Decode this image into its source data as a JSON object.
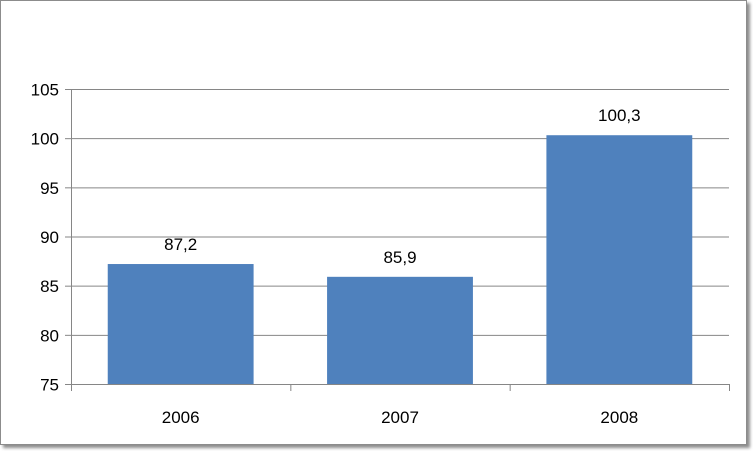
{
  "chart_data": {
    "type": "bar",
    "categories": [
      "2006",
      "2007",
      "2008"
    ],
    "values": [
      87.2,
      85.9,
      100.3
    ],
    "data_labels": [
      "87,2",
      "85,9",
      "100,3"
    ],
    "ylim": [
      75,
      105
    ],
    "yticks": [
      75,
      80,
      85,
      90,
      95,
      100,
      105
    ],
    "ytick_labels": [
      "75",
      "80",
      "85",
      "90",
      "95",
      "100",
      "105"
    ],
    "grid": true,
    "legend": "none",
    "title": "",
    "xlabel": "",
    "ylabel": "",
    "colors": {
      "bar": "#4f81bd",
      "grid": "#868686",
      "axis": "#868686"
    }
  }
}
